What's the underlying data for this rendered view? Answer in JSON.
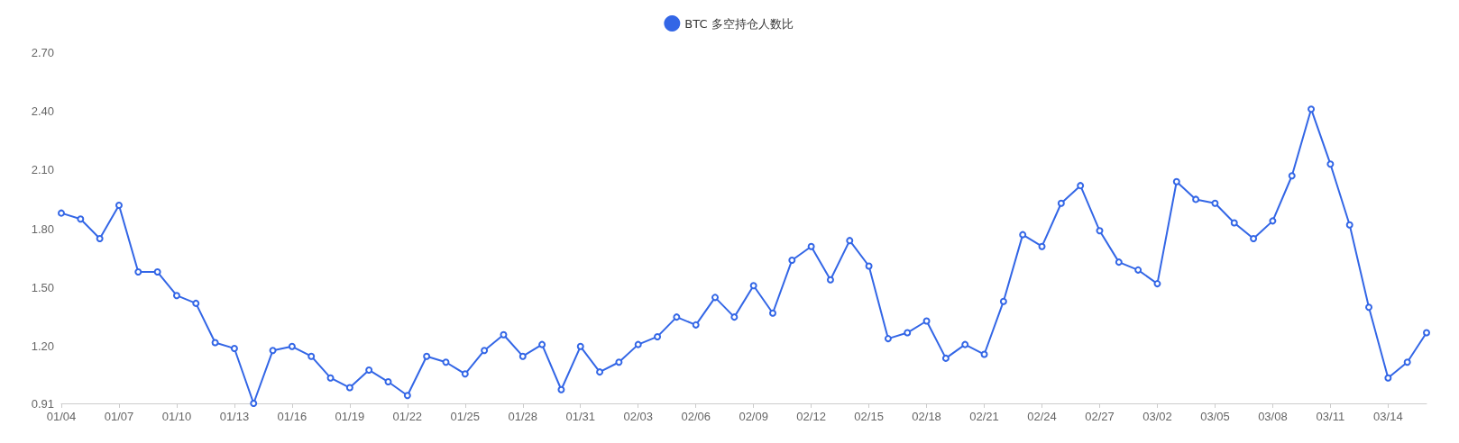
{
  "chart_data": {
    "type": "line",
    "categories": [
      "01/04",
      null,
      null,
      "01/07",
      null,
      null,
      "01/10",
      null,
      null,
      "01/13",
      null,
      null,
      "01/16",
      null,
      null,
      "01/19",
      null,
      null,
      "01/22",
      null,
      null,
      "01/25",
      null,
      null,
      "01/28",
      null,
      null,
      "01/31",
      null,
      null,
      "02/03",
      null,
      null,
      "02/06",
      null,
      null,
      "02/09",
      null,
      null,
      "02/12",
      null,
      null,
      "02/15",
      null,
      null,
      "02/18",
      null,
      null,
      "02/21",
      null,
      null,
      "02/24",
      null,
      null,
      "02/27",
      null,
      null,
      "03/02",
      null,
      null,
      "03/05",
      null,
      null,
      "03/08",
      null,
      null,
      "03/11",
      null,
      null,
      "03/14",
      null,
      null
    ],
    "series": [
      {
        "name": "BTC 多空持仓人数比",
        "color": "#3366e6",
        "values": [
          1.88,
          1.85,
          1.75,
          1.92,
          1.58,
          1.58,
          1.46,
          1.42,
          1.22,
          1.19,
          0.91,
          1.18,
          1.2,
          1.15,
          1.04,
          0.99,
          1.08,
          1.02,
          0.95,
          1.15,
          1.12,
          1.06,
          1.18,
          1.26,
          1.15,
          1.21,
          0.98,
          1.2,
          1.07,
          1.12,
          1.21,
          1.25,
          1.35,
          1.31,
          1.45,
          1.35,
          1.51,
          1.37,
          1.64,
          1.71,
          1.54,
          1.74,
          1.61,
          1.24,
          1.27,
          1.33,
          1.14,
          1.21,
          1.16,
          1.43,
          1.77,
          1.71,
          1.93,
          2.02,
          1.79,
          1.63,
          1.59,
          1.52,
          2.04,
          1.95,
          1.93,
          1.83,
          1.75,
          1.84,
          2.07,
          2.41,
          2.13,
          1.82,
          1.4,
          1.04,
          1.12,
          1.27
        ]
      }
    ],
    "ylim": [
      0.91,
      2.7
    ],
    "yticks": [
      0.91,
      {
        "value": 1.2,
        "label": "1.20"
      },
      {
        "value": 1.5,
        "label": "1.50"
      },
      {
        "value": 1.8,
        "label": "1.80"
      },
      {
        "value": 2.1,
        "label": "2.10"
      },
      {
        "value": 2.4,
        "label": "2.40"
      },
      {
        "value": 2.7,
        "label": "2.70"
      }
    ],
    "grid": false,
    "legend": "top",
    "marker": "circle",
    "line_style": "solid"
  }
}
